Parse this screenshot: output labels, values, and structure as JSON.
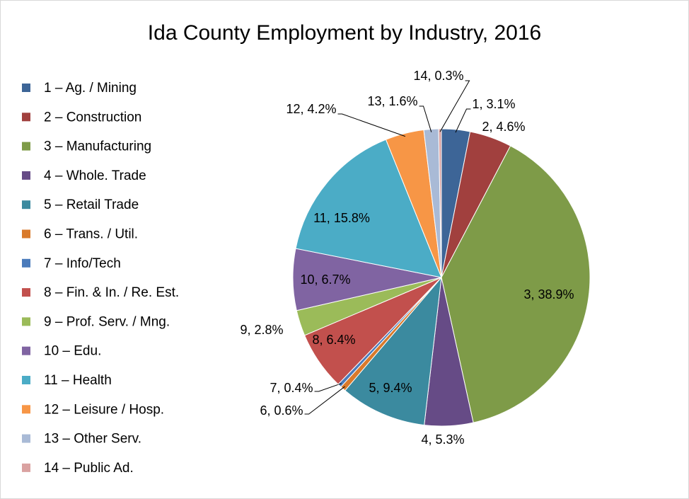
{
  "chart_data": {
    "type": "pie",
    "title": "Ida County Employment by Industry, 2016",
    "categories": [
      "1 – Ag. / Mining",
      "2 – Construction",
      "3 – Manufacturing",
      "4 – Whole. Trade",
      "5 – Retail Trade",
      "6 – Trans. / Util.",
      "7 – Info/Tech",
      "8 – Fin. & In. / Re. Est.",
      "9 – Prof. Serv. / Mng.",
      "10 – Edu.",
      "11 – Health",
      "12 – Leisure / Hosp.",
      "13 – Other Serv.",
      "14 – Public Ad."
    ],
    "values": [
      3.1,
      4.6,
      38.9,
      5.3,
      9.4,
      0.6,
      0.4,
      6.4,
      2.8,
      6.7,
      15.8,
      4.2,
      1.6,
      0.3
    ],
    "value_labels": [
      "1, 3.1%",
      "2, 4.6%",
      "3, 38.9%",
      "4, 5.3%",
      "5, 9.4%",
      "6, 0.6%",
      "7, 0.4%",
      "8, 6.4%",
      "9, 2.8%",
      "10, 6.7%",
      "11, 15.8%",
      "12, 4.2%",
      "13, 1.6%",
      "14, 0.3%"
    ],
    "colors": [
      "#3d6597",
      "#a1403e",
      "#7e9b48",
      "#664b86",
      "#3b8a9f",
      "#d97a2b",
      "#4a7bbb",
      "#c2504d",
      "#9bbb59",
      "#8064a2",
      "#4bacc6",
      "#f79646",
      "#a9bad6",
      "#daa2a1"
    ],
    "legend": "left"
  }
}
